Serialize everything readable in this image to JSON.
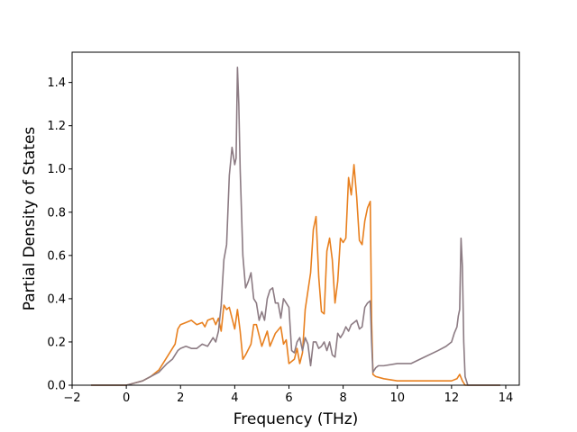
{
  "chart_data": {
    "type": "line",
    "title": "",
    "xlabel": "Frequency (THz)",
    "ylabel": "Partial Density of States",
    "xlim": [
      -2,
      14.5
    ],
    "ylim": [
      0,
      1.54
    ],
    "xticks": [
      -2,
      0,
      2,
      4,
      6,
      8,
      10,
      12,
      14
    ],
    "yticks": [
      0.0,
      0.2,
      0.4,
      0.6,
      0.8,
      1.0,
      1.2,
      1.4
    ],
    "xtick_labels": [
      "−2",
      "0",
      "2",
      "4",
      "6",
      "8",
      "10",
      "12",
      "14"
    ],
    "ytick_labels": [
      "0.0",
      "0.2",
      "0.4",
      "0.6",
      "0.8",
      "1.0",
      "1.2",
      "1.4"
    ],
    "grid": false,
    "legend": false,
    "series": [
      {
        "color": "#e8801f",
        "x": [
          -1.3,
          0.0,
          0.3,
          0.6,
          0.9,
          1.2,
          1.5,
          1.8,
          1.9,
          2.0,
          2.2,
          2.4,
          2.6,
          2.8,
          2.9,
          3.0,
          3.2,
          3.3,
          3.4,
          3.5,
          3.6,
          3.7,
          3.8,
          4.0,
          4.1,
          4.2,
          4.3,
          4.4,
          4.6,
          4.7,
          4.8,
          5.0,
          5.2,
          5.3,
          5.5,
          5.7,
          5.8,
          5.9,
          6.0,
          6.2,
          6.3,
          6.4,
          6.5,
          6.6,
          6.8,
          6.9,
          7.0,
          7.1,
          7.2,
          7.3,
          7.4,
          7.5,
          7.6,
          7.7,
          7.8,
          7.9,
          8.0,
          8.1,
          8.2,
          8.3,
          8.4,
          8.5,
          8.6,
          8.7,
          8.8,
          8.9,
          9.0,
          9.05,
          9.1,
          9.2,
          9.5,
          10.0,
          10.5,
          11.0,
          11.5,
          12.0,
          12.2,
          12.3,
          12.4,
          12.5,
          12.6,
          13.8
        ],
        "y": [
          0.0,
          0.0,
          0.01,
          0.02,
          0.04,
          0.07,
          0.13,
          0.19,
          0.26,
          0.28,
          0.29,
          0.3,
          0.28,
          0.29,
          0.27,
          0.3,
          0.31,
          0.28,
          0.31,
          0.25,
          0.37,
          0.35,
          0.36,
          0.26,
          0.35,
          0.25,
          0.12,
          0.14,
          0.19,
          0.28,
          0.28,
          0.18,
          0.25,
          0.18,
          0.24,
          0.27,
          0.19,
          0.21,
          0.1,
          0.12,
          0.17,
          0.1,
          0.15,
          0.35,
          0.52,
          0.72,
          0.78,
          0.5,
          0.34,
          0.33,
          0.62,
          0.68,
          0.58,
          0.38,
          0.48,
          0.68,
          0.66,
          0.68,
          0.96,
          0.88,
          1.02,
          0.87,
          0.67,
          0.65,
          0.76,
          0.82,
          0.85,
          0.3,
          0.05,
          0.04,
          0.03,
          0.02,
          0.02,
          0.02,
          0.02,
          0.02,
          0.03,
          0.05,
          0.02,
          0.0,
          0.0,
          0.0
        ]
      },
      {
        "color": "#8c7b83",
        "x": [
          -1.3,
          0.0,
          0.3,
          0.6,
          0.9,
          1.2,
          1.5,
          1.7,
          1.9,
          2.0,
          2.2,
          2.4,
          2.6,
          2.8,
          3.0,
          3.2,
          3.3,
          3.4,
          3.5,
          3.6,
          3.7,
          3.8,
          3.9,
          4.0,
          4.05,
          4.1,
          4.15,
          4.2,
          4.3,
          4.4,
          4.5,
          4.6,
          4.7,
          4.8,
          4.9,
          5.0,
          5.1,
          5.2,
          5.3,
          5.4,
          5.5,
          5.6,
          5.7,
          5.8,
          5.9,
          6.0,
          6.1,
          6.2,
          6.3,
          6.4,
          6.5,
          6.6,
          6.7,
          6.8,
          6.9,
          7.0,
          7.1,
          7.2,
          7.3,
          7.4,
          7.5,
          7.6,
          7.7,
          7.8,
          7.9,
          8.0,
          8.1,
          8.2,
          8.3,
          8.4,
          8.5,
          8.6,
          8.7,
          8.8,
          8.9,
          9.0,
          9.05,
          9.1,
          9.2,
          9.3,
          9.5,
          10.0,
          10.5,
          11.0,
          11.5,
          11.8,
          12.0,
          12.1,
          12.2,
          12.25,
          12.3,
          12.35,
          12.4,
          12.45,
          12.5,
          12.6,
          13.8
        ],
        "y": [
          0.0,
          0.0,
          0.01,
          0.02,
          0.04,
          0.06,
          0.1,
          0.12,
          0.16,
          0.17,
          0.18,
          0.17,
          0.17,
          0.19,
          0.18,
          0.22,
          0.2,
          0.25,
          0.37,
          0.58,
          0.65,
          0.97,
          1.1,
          1.02,
          1.05,
          1.47,
          1.3,
          1.0,
          0.6,
          0.45,
          0.48,
          0.52,
          0.4,
          0.38,
          0.3,
          0.34,
          0.3,
          0.4,
          0.44,
          0.45,
          0.38,
          0.38,
          0.31,
          0.4,
          0.38,
          0.36,
          0.16,
          0.15,
          0.2,
          0.22,
          0.16,
          0.22,
          0.19,
          0.09,
          0.2,
          0.2,
          0.17,
          0.18,
          0.2,
          0.16,
          0.2,
          0.14,
          0.13,
          0.24,
          0.22,
          0.24,
          0.27,
          0.25,
          0.28,
          0.29,
          0.3,
          0.26,
          0.27,
          0.36,
          0.38,
          0.39,
          0.2,
          0.06,
          0.08,
          0.09,
          0.09,
          0.1,
          0.1,
          0.13,
          0.16,
          0.18,
          0.2,
          0.24,
          0.27,
          0.32,
          0.35,
          0.68,
          0.55,
          0.2,
          0.04,
          0.0,
          0.0
        ]
      }
    ]
  }
}
